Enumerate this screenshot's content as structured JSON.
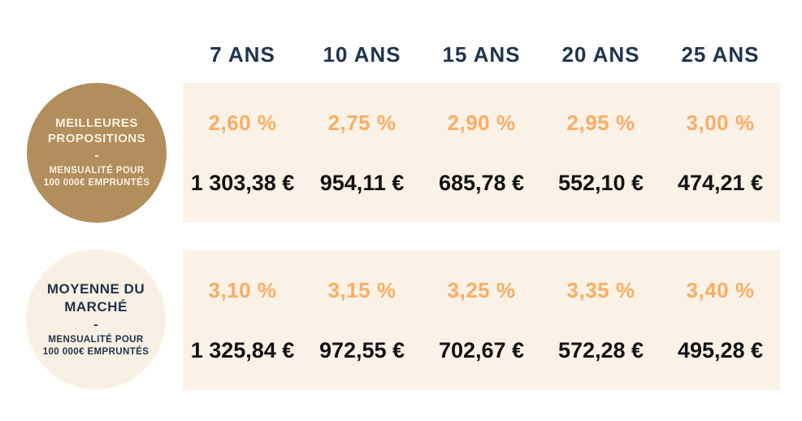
{
  "table": {
    "columns": [
      "7 ANS",
      "10 ANS",
      "15 ANS",
      "20 ANS",
      "25 ANS"
    ],
    "rows": [
      {
        "label_title": "MEILLEURES PROPOSITIONS",
        "separator": "-",
        "label_subtitle": "MENSUALITÉ POUR 100 000€ EMPRUNTÉS",
        "rates": [
          "2,60 %",
          "2,75 %",
          "2,90 %",
          "2,95 %",
          "3,00 %"
        ],
        "payments": [
          "1 303,38 €",
          "954,11 €",
          "685,78 €",
          "552,10 €",
          "474,21 €"
        ]
      },
      {
        "label_title": "MOYENNE DU MARCHÉ",
        "separator": "-",
        "label_subtitle": "MENSUALITÉ POUR 100 000€ EMPRUNTÉS",
        "rates": [
          "3,10 %",
          "3,15 %",
          "3,25 %",
          "3,35 %",
          "3,40 %"
        ],
        "payments": [
          "1 325,84 €",
          "972,55 €",
          "702,67 €",
          "572,28 €",
          "495,28 €"
        ]
      }
    ]
  },
  "colors": {
    "background": "#ffffff",
    "panel_cream": "#faf2e6",
    "badge_gold": "#b28e5d",
    "badge_cream": "#f8f0e2",
    "navy_text": "#21334f",
    "orange_rate": "#f9ad64",
    "payment_text": "#121212",
    "badge_gold_text": "#f8f1e1"
  },
  "chart_data": {
    "type": "table",
    "title": "",
    "columns": [
      "7 ANS",
      "10 ANS",
      "15 ANS",
      "20 ANS",
      "25 ANS"
    ],
    "rows": [
      {
        "label": "MEILLEURES PROPOSITIONS - MENSUALITÉ POUR 100 000€ EMPRUNTÉS",
        "rates_percent": [
          2.6,
          2.75,
          2.9,
          2.95,
          3.0
        ],
        "monthly_payments_eur": [
          1303.38,
          954.11,
          685.78,
          552.1,
          474.21
        ]
      },
      {
        "label": "MOYENNE DU MARCHÉ - MENSUALITÉ POUR 100 000€ EMPRUNTÉS",
        "rates_percent": [
          3.1,
          3.15,
          3.25,
          3.35,
          3.4
        ],
        "monthly_payments_eur": [
          1325.84,
          972.55,
          702.67,
          572.28,
          495.28
        ]
      }
    ]
  }
}
